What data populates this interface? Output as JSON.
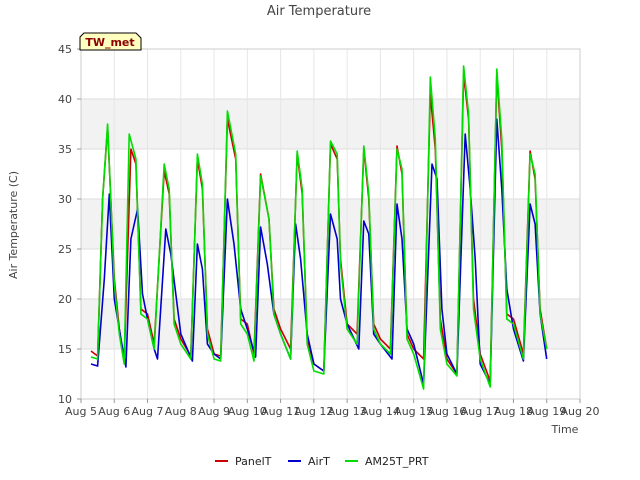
{
  "chart_data": {
    "type": "line",
    "title": "Air Temperature",
    "xlabel": "Time",
    "ylabel": "Air Temperature (C)",
    "station_badge": "TW_met",
    "xlim": [
      5,
      20
    ],
    "ylim": [
      10,
      45
    ],
    "x_ticks": [
      5,
      6,
      7,
      8,
      9,
      10,
      11,
      12,
      13,
      14,
      15,
      16,
      17,
      18,
      19,
      20
    ],
    "x_tick_labels": [
      "Aug 5",
      "Aug 6",
      "Aug 7",
      "Aug 8",
      "Aug 9",
      "Aug 10",
      "Aug 11",
      "Aug 12",
      "Aug 13",
      "Aug 14",
      "Aug 15",
      "Aug 16",
      "Aug 17",
      "Aug 18",
      "Aug 19",
      "Aug 20"
    ],
    "y_ticks": [
      10,
      15,
      20,
      25,
      30,
      35,
      40,
      45
    ],
    "y_tick_labels": [
      "10",
      "15",
      "20",
      "25",
      "30",
      "35",
      "40",
      "45"
    ],
    "grid": true,
    "legend_position": "bottom",
    "series": [
      {
        "name": "PanelT",
        "color": "#cc0000",
        "x": [
          5.3,
          5.5,
          5.65,
          5.8,
          6.0,
          6.15,
          6.3,
          6.5,
          6.65,
          6.8,
          7.0,
          7.2,
          7.5,
          7.65,
          7.8,
          8.0,
          8.3,
          8.5,
          8.65,
          8.8,
          9.0,
          9.2,
          9.4,
          9.65,
          9.8,
          10.0,
          10.2,
          10.4,
          10.65,
          10.8,
          11.0,
          11.3,
          11.5,
          11.65,
          11.8,
          12.0,
          12.3,
          12.5,
          12.7,
          12.8,
          13.0,
          13.3,
          13.5,
          13.65,
          13.8,
          14.0,
          14.3,
          14.5,
          14.65,
          14.8,
          15.0,
          15.3,
          15.5,
          15.65,
          15.8,
          16.0,
          16.3,
          16.5,
          16.65,
          16.8,
          17.0,
          17.3,
          17.5,
          17.65,
          17.8,
          18.0,
          18.3,
          18.5,
          18.65,
          18.8,
          19.0
        ],
        "y": [
          14.8,
          14.3,
          30.0,
          37.2,
          22.0,
          17.0,
          13.8,
          35.0,
          33.5,
          19.0,
          18.5,
          15.5,
          32.8,
          30.5,
          18.0,
          16.0,
          14.3,
          34.0,
          31.0,
          17.0,
          14.5,
          14.3,
          38.0,
          34.0,
          18.0,
          17.5,
          14.5,
          32.5,
          28.0,
          19.0,
          17.0,
          15.0,
          34.5,
          30.5,
          16.0,
          13.5,
          12.8,
          35.5,
          34.0,
          24.0,
          17.5,
          16.5,
          35.0,
          30.0,
          17.5,
          16.0,
          15.0,
          35.3,
          32.5,
          16.5,
          15.0,
          14.0,
          40.5,
          35.0,
          18.0,
          14.0,
          12.5,
          42.5,
          38.0,
          20.0,
          14.5,
          11.8,
          42.5,
          35.0,
          18.5,
          18.0,
          14.5,
          34.8,
          32.0,
          19.0,
          15.0
        ]
      },
      {
        "name": "AirT",
        "color": "#0000cc",
        "x": [
          5.3,
          5.5,
          5.7,
          5.85,
          6.0,
          6.2,
          6.35,
          6.5,
          6.7,
          6.85,
          7.0,
          7.2,
          7.3,
          7.55,
          7.7,
          8.0,
          8.35,
          8.5,
          8.65,
          8.8,
          9.0,
          9.2,
          9.4,
          9.6,
          9.8,
          10.0,
          10.25,
          10.4,
          10.6,
          10.8,
          11.0,
          11.3,
          11.45,
          11.6,
          11.8,
          12.0,
          12.3,
          12.5,
          12.7,
          12.8,
          13.0,
          13.35,
          13.5,
          13.65,
          13.8,
          14.0,
          14.35,
          14.5,
          14.65,
          14.8,
          15.0,
          15.3,
          15.55,
          15.7,
          15.85,
          16.0,
          16.3,
          16.55,
          16.7,
          16.85,
          17.0,
          17.3,
          17.5,
          17.65,
          17.8,
          18.0,
          18.3,
          18.5,
          18.65,
          18.8,
          19.0
        ],
        "y": [
          13.5,
          13.3,
          22.0,
          30.5,
          20.0,
          16.0,
          13.2,
          26.0,
          29.0,
          20.5,
          18.0,
          15.0,
          14.0,
          27.0,
          24.5,
          16.5,
          13.8,
          25.5,
          23.0,
          15.5,
          14.5,
          14.0,
          30.0,
          25.5,
          19.0,
          17.0,
          14.2,
          27.2,
          23.5,
          18.5,
          16.5,
          14.0,
          27.5,
          24.0,
          16.5,
          13.5,
          12.8,
          28.5,
          26.0,
          20.0,
          17.5,
          15.0,
          27.8,
          26.5,
          16.5,
          15.5,
          14.0,
          29.5,
          26.0,
          17.0,
          15.5,
          11.5,
          33.5,
          32.0,
          19.0,
          14.5,
          12.5,
          36.5,
          31.0,
          24.0,
          13.5,
          11.5,
          38.0,
          31.0,
          21.0,
          17.0,
          13.8,
          29.5,
          27.5,
          18.5,
          14.0
        ]
      },
      {
        "name": "AM25T_PRT",
        "color": "#00dd00",
        "x": [
          5.3,
          5.5,
          5.65,
          5.8,
          6.0,
          6.15,
          6.3,
          6.45,
          6.65,
          6.8,
          7.0,
          7.2,
          7.5,
          7.65,
          7.8,
          8.0,
          8.3,
          8.5,
          8.65,
          8.8,
          9.0,
          9.2,
          9.4,
          9.65,
          9.8,
          10.0,
          10.2,
          10.4,
          10.65,
          10.8,
          11.0,
          11.3,
          11.5,
          11.65,
          11.8,
          12.0,
          12.3,
          12.5,
          12.7,
          12.8,
          13.0,
          13.3,
          13.5,
          13.65,
          13.8,
          14.0,
          14.3,
          14.5,
          14.65,
          14.8,
          15.0,
          15.3,
          15.5,
          15.65,
          15.8,
          16.0,
          16.3,
          16.5,
          16.65,
          16.8,
          17.0,
          17.3,
          17.5,
          17.65,
          17.8,
          18.0,
          18.3,
          18.5,
          18.65,
          18.8,
          19.0
        ],
        "y": [
          14.2,
          14.0,
          30.0,
          37.5,
          21.5,
          16.5,
          13.5,
          36.5,
          34.0,
          18.5,
          18.0,
          15.0,
          33.5,
          31.0,
          17.5,
          15.5,
          14.0,
          34.5,
          31.5,
          16.5,
          14.0,
          13.8,
          38.8,
          34.5,
          17.5,
          16.5,
          13.8,
          32.3,
          28.0,
          18.5,
          16.5,
          14.0,
          34.8,
          31.0,
          15.5,
          12.8,
          12.5,
          35.8,
          34.5,
          23.5,
          17.0,
          15.5,
          35.3,
          30.5,
          17.0,
          15.5,
          14.5,
          35.0,
          33.0,
          16.0,
          14.5,
          11.0,
          42.2,
          36.0,
          17.0,
          13.5,
          12.3,
          43.3,
          38.5,
          19.0,
          14.0,
          11.2,
          43.0,
          36.0,
          18.0,
          17.5,
          14.0,
          34.5,
          32.5,
          18.5,
          15.0
        ]
      }
    ]
  }
}
